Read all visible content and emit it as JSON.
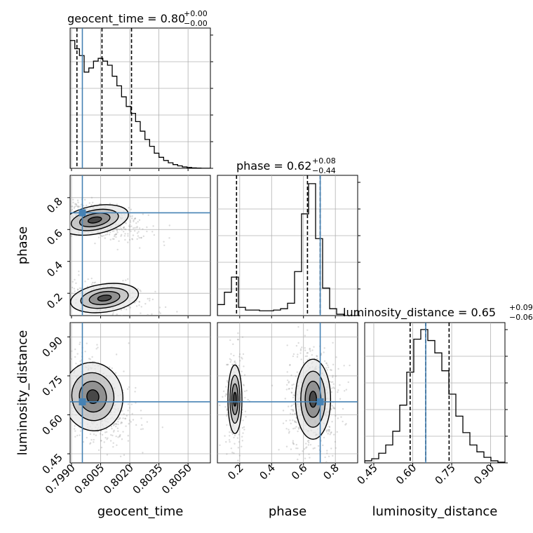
{
  "chart_data": {
    "type": "corner",
    "grid": true,
    "colors": {
      "truth": "#4682b4",
      "hist": "#000000",
      "points": "#9a9a9a",
      "background": "#ffffff"
    },
    "parameters": [
      {
        "name": "geocent_time",
        "title_value": "0.80",
        "title_upper": "+0.00",
        "title_lower": "−0.00",
        "range": [
          0.79893,
          0.80615
        ],
        "ticks": [
          0.799,
          0.8005,
          0.802,
          0.8035,
          0.805
        ],
        "tick_labels": [
          "0.7990",
          "0.8005",
          "0.8020",
          "0.8035",
          "0.8050"
        ],
        "quantiles": [
          0.79928,
          0.80057,
          0.80209
        ],
        "truth": 0.79956
      },
      {
        "name": "phase",
        "title_value": "0.62",
        "title_upper": "+0.08",
        "title_lower": "−0.44",
        "range": [
          0.06,
          0.94
        ],
        "ticks": [
          0.2,
          0.4,
          0.6,
          0.8
        ],
        "tick_labels": [
          "0.2",
          "0.4",
          "0.6",
          "0.8"
        ],
        "quantiles": [
          0.18,
          0.625,
          0.705
        ],
        "truth": 0.705
      },
      {
        "name": "luminosity_distance",
        "title_value": "0.65",
        "title_upper": "+0.09",
        "title_lower": "−0.06",
        "range": [
          0.415,
          0.955
        ],
        "ticks": [
          0.45,
          0.6,
          0.75,
          0.9
        ],
        "tick_labels": [
          "0.45",
          "0.60",
          "0.75",
          "0.90"
        ],
        "quantiles": [
          0.59,
          0.65,
          0.74
        ],
        "truth": 0.65
      }
    ],
    "histograms": {
      "geocent_time": [
        0.93,
        0.87,
        0.82,
        0.7,
        0.73,
        0.78,
        0.8,
        0.78,
        0.75,
        0.67,
        0.6,
        0.52,
        0.45,
        0.4,
        0.34,
        0.27,
        0.21,
        0.16,
        0.11,
        0.08,
        0.057,
        0.04,
        0.027,
        0.018,
        0.01,
        0.006,
        0.003,
        0.0015,
        0.0008,
        0.0004
      ],
      "phase": [
        0.08,
        0.17,
        0.28,
        0.06,
        0.04,
        0.04,
        0.035,
        0.035,
        0.04,
        0.05,
        0.09,
        0.32,
        0.74,
        0.96,
        0.56,
        0.2,
        0.05,
        0.01,
        0.0,
        0.0
      ],
      "luminosity_distance": [
        0.015,
        0.03,
        0.07,
        0.13,
        0.23,
        0.42,
        0.66,
        0.9,
        0.97,
        0.89,
        0.8,
        0.67,
        0.5,
        0.34,
        0.22,
        0.13,
        0.08,
        0.04,
        0.015,
        0.005
      ]
    }
  }
}
